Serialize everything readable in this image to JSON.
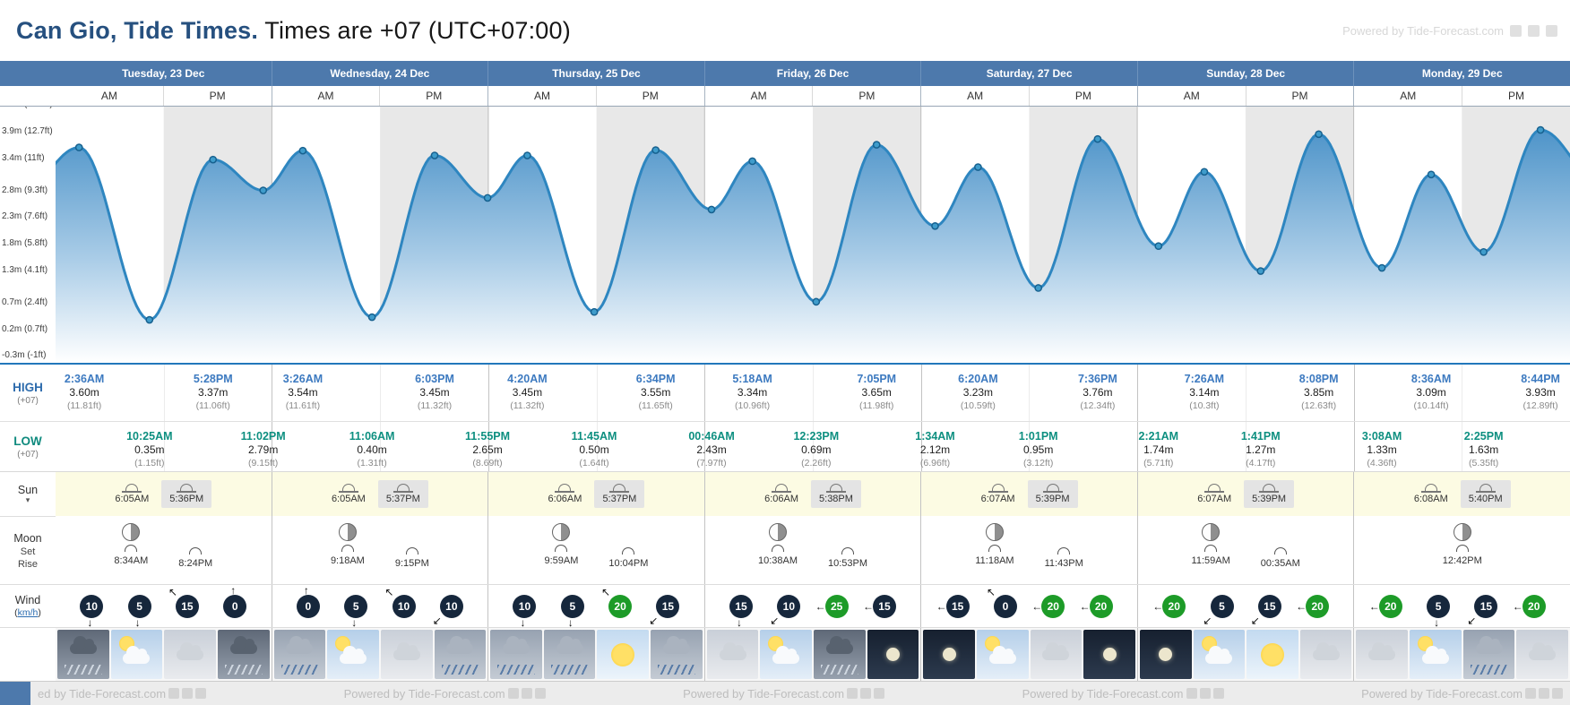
{
  "header": {
    "title_bold": "Can Gio, Tide Times.",
    "title_rest": " Times are +07 (UTC+07:00)",
    "powered_by": "Powered by Tide-Forecast.com"
  },
  "icons": {
    "caret_down": "▾"
  },
  "day_headers": [
    "Tuesday, 23 Dec",
    "Wednesday, 24 Dec",
    "Thursday, 25 Dec",
    "Friday, 26 Dec",
    "Saturday, 27 Dec",
    "Sunday, 28 Dec",
    "Monday, 29 Dec"
  ],
  "ampm_labels": [
    "AM",
    "PM"
  ],
  "row_labels": {
    "high": "HIGH",
    "high_tz": "(+07)",
    "low": "LOW",
    "low_tz": "(+07)",
    "sun": "Sun",
    "moon": "Moon",
    "set": "Set",
    "rise": "Rise",
    "wind": "Wind",
    "wind_unit": "km/h"
  },
  "chart_data": {
    "type": "area",
    "title": "Seven day tide height curve for Can Gio",
    "x_unit": "hours from Tuesday 00:00 (+07)",
    "y_unit": "m",
    "x_range": [
      0,
      168
    ],
    "y_range": [
      -0.46,
      4.37
    ],
    "grid": "pm-shaded-columns",
    "y_axis": [
      {
        "v": 4.4,
        "label": "4.4m (14.4ft)"
      },
      {
        "v": 3.9,
        "label": "3.9m (12.7ft)"
      },
      {
        "v": 3.4,
        "label": "3.4m (11ft)"
      },
      {
        "v": 2.8,
        "label": "2.8m (9.3ft)"
      },
      {
        "v": 2.3,
        "label": "2.3m (7.6ft)"
      },
      {
        "v": 1.8,
        "label": "1.8m (5.8ft)"
      },
      {
        "v": 1.3,
        "label": "1.3m (4.1ft)"
      },
      {
        "v": 0.7,
        "label": "0.7m (2.4ft)"
      },
      {
        "v": 0.2,
        "label": "0.2m (0.7ft)"
      },
      {
        "v": -0.3,
        "label": "-0.3m (-1ft)"
      }
    ],
    "points": [
      {
        "t": -3.6,
        "h": 2.8,
        "edge": true
      },
      {
        "t": 2.6,
        "h": 3.6
      },
      {
        "t": 10.42,
        "h": 0.35
      },
      {
        "t": 17.47,
        "h": 3.37
      },
      {
        "t": 23.03,
        "h": 2.79
      },
      {
        "t": 27.43,
        "h": 3.54
      },
      {
        "t": 35.1,
        "h": 0.4
      },
      {
        "t": 42.05,
        "h": 3.45
      },
      {
        "t": 47.92,
        "h": 2.65
      },
      {
        "t": 52.33,
        "h": 3.45
      },
      {
        "t": 59.75,
        "h": 0.5
      },
      {
        "t": 66.57,
        "h": 3.55
      },
      {
        "t": 72.77,
        "h": 2.43
      },
      {
        "t": 77.3,
        "h": 3.34
      },
      {
        "t": 84.38,
        "h": 0.69
      },
      {
        "t": 91.08,
        "h": 3.65
      },
      {
        "t": 97.57,
        "h": 2.12
      },
      {
        "t": 102.33,
        "h": 3.23
      },
      {
        "t": 109.02,
        "h": 0.95
      },
      {
        "t": 115.6,
        "h": 3.76
      },
      {
        "t": 122.35,
        "h": 1.74
      },
      {
        "t": 127.43,
        "h": 3.14
      },
      {
        "t": 133.68,
        "h": 1.27
      },
      {
        "t": 140.13,
        "h": 3.85
      },
      {
        "t": 147.13,
        "h": 1.33
      },
      {
        "t": 152.6,
        "h": 3.09
      },
      {
        "t": 158.42,
        "h": 1.63
      },
      {
        "t": 164.73,
        "h": 3.93
      },
      {
        "t": 171.5,
        "h": 2.9,
        "edge": true
      }
    ]
  },
  "high_tides": [
    {
      "t": 2.6,
      "time": "2:36AM",
      "height_m": "3.60m",
      "height_ft": "(11.81ft)"
    },
    {
      "t": 17.47,
      "time": "5:28PM",
      "height_m": "3.37m",
      "height_ft": "(11.06ft)"
    },
    {
      "t": 27.43,
      "time": "3:26AM",
      "height_m": "3.54m",
      "height_ft": "(11.61ft)"
    },
    {
      "t": 42.05,
      "time": "6:03PM",
      "height_m": "3.45m",
      "height_ft": "(11.32ft)"
    },
    {
      "t": 52.33,
      "time": "4:20AM",
      "height_m": "3.45m",
      "height_ft": "(11.32ft)"
    },
    {
      "t": 66.57,
      "time": "6:34PM",
      "height_m": "3.55m",
      "height_ft": "(11.65ft)"
    },
    {
      "t": 77.3,
      "time": "5:18AM",
      "height_m": "3.34m",
      "height_ft": "(10.96ft)"
    },
    {
      "t": 91.08,
      "time": "7:05PM",
      "height_m": "3.65m",
      "height_ft": "(11.98ft)"
    },
    {
      "t": 102.33,
      "time": "6:20AM",
      "height_m": "3.23m",
      "height_ft": "(10.59ft)"
    },
    {
      "t": 115.6,
      "time": "7:36PM",
      "height_m": "3.76m",
      "height_ft": "(12.34ft)"
    },
    {
      "t": 127.43,
      "time": "7:26AM",
      "height_m": "3.14m",
      "height_ft": "(10.3ft)"
    },
    {
      "t": 140.13,
      "time": "8:08PM",
      "height_m": "3.85m",
      "height_ft": "(12.63ft)"
    },
    {
      "t": 152.6,
      "time": "8:36AM",
      "height_m": "3.09m",
      "height_ft": "(10.14ft)"
    },
    {
      "t": 164.73,
      "time": "8:44PM",
      "height_m": "3.93m",
      "height_ft": "(12.89ft)"
    }
  ],
  "low_tides": [
    {
      "t": 10.42,
      "time": "10:25AM",
      "height_m": "0.35m",
      "height_ft": "(1.15ft)"
    },
    {
      "t": 23.03,
      "time": "11:02PM",
      "height_m": "2.79m",
      "height_ft": "(9.15ft)"
    },
    {
      "t": 35.1,
      "time": "11:06AM",
      "height_m": "0.40m",
      "height_ft": "(1.31ft)"
    },
    {
      "t": 47.92,
      "time": "11:55PM",
      "height_m": "2.65m",
      "height_ft": "(8.69ft)"
    },
    {
      "t": 59.75,
      "time": "11:45AM",
      "height_m": "0.50m",
      "height_ft": "(1.64ft)"
    },
    {
      "t": 72.77,
      "time": "00:46AM",
      "height_m": "2.43m",
      "height_ft": "(7.97ft)"
    },
    {
      "t": 84.38,
      "time": "12:23PM",
      "height_m": "0.69m",
      "height_ft": "(2.26ft)"
    },
    {
      "t": 97.57,
      "time": "1:34AM",
      "height_m": "2.12m",
      "height_ft": "(6.96ft)"
    },
    {
      "t": 109.02,
      "time": "1:01PM",
      "height_m": "0.95m",
      "height_ft": "(3.12ft)"
    },
    {
      "t": 122.35,
      "time": "2:21AM",
      "height_m": "1.74m",
      "height_ft": "(5.71ft)"
    },
    {
      "t": 133.68,
      "time": "1:41PM",
      "height_m": "1.27m",
      "height_ft": "(4.17ft)"
    },
    {
      "t": 147.13,
      "time": "3:08AM",
      "height_m": "1.33m",
      "height_ft": "(4.36ft)"
    },
    {
      "t": 158.42,
      "time": "2:25PM",
      "height_m": "1.63m",
      "height_ft": "(5.35ft)"
    }
  ],
  "sun": [
    {
      "rise": "6:05AM",
      "set": "5:36PM"
    },
    {
      "rise": "6:05AM",
      "set": "5:37PM"
    },
    {
      "rise": "6:06AM",
      "set": "5:37PM"
    },
    {
      "rise": "6:06AM",
      "set": "5:38PM"
    },
    {
      "rise": "6:07AM",
      "set": "5:39PM"
    },
    {
      "rise": "6:07AM",
      "set": "5:39PM"
    },
    {
      "rise": "6:08AM",
      "set": "5:40PM"
    }
  ],
  "moon": [
    {
      "set": "8:34AM",
      "rise": "8:24PM",
      "phase": "waning-gibbous"
    },
    {
      "set": "9:18AM",
      "rise": "9:15PM",
      "phase": "waning-gibbous"
    },
    {
      "set": "9:59AM",
      "rise": "10:04PM",
      "phase": "waning-gibbous"
    },
    {
      "set": "10:38AM",
      "rise": "10:53PM",
      "phase": "last-quarter"
    },
    {
      "set": "11:18AM",
      "rise": "11:43PM",
      "phase": "last-quarter"
    },
    {
      "set": "11:59AM",
      "rise": "00:35AM",
      "phase": "waning-crescent"
    },
    {
      "set": "12:42PM",
      "rise": "",
      "phase": "waning-crescent"
    }
  ],
  "wind": [
    {
      "speed": 10,
      "arrow": "↓"
    },
    {
      "speed": 5,
      "arrow": "↓"
    },
    {
      "speed": 15,
      "arrow": "↖"
    },
    {
      "speed": 0,
      "arrow": "↑"
    },
    {
      "speed": 0,
      "arrow": "↑"
    },
    {
      "speed": 5,
      "arrow": "↓"
    },
    {
      "speed": 10,
      "arrow": "↖"
    },
    {
      "speed": 10,
      "arrow": "↙"
    },
    {
      "speed": 10,
      "arrow": "↓"
    },
    {
      "speed": 5,
      "arrow": "↓"
    },
    {
      "speed": 20,
      "arrow": "↖"
    },
    {
      "speed": 15,
      "arrow": "↙"
    },
    {
      "speed": 15,
      "arrow": "↓"
    },
    {
      "speed": 10,
      "arrow": "↙"
    },
    {
      "speed": 25,
      "arrow": "←"
    },
    {
      "speed": 15,
      "arrow": "←"
    },
    {
      "speed": 15,
      "arrow": "←"
    },
    {
      "speed": 0,
      "arrow": "↖"
    },
    {
      "speed": 20,
      "arrow": "←"
    },
    {
      "speed": 20,
      "arrow": "←"
    },
    {
      "speed": 20,
      "arrow": "←"
    },
    {
      "speed": 5,
      "arrow": "↙"
    },
    {
      "speed": 15,
      "arrow": "↙"
    },
    {
      "speed": 20,
      "arrow": "←"
    },
    {
      "speed": 20,
      "arrow": "←"
    },
    {
      "speed": 5,
      "arrow": "↓"
    },
    {
      "speed": 15,
      "arrow": "↙"
    },
    {
      "speed": 20,
      "arrow": "←"
    }
  ],
  "weather": [
    "storm",
    "sun-cloud",
    "cloud",
    "storm",
    "rain",
    "sun-cloud",
    "cloud",
    "rain",
    "rain",
    "rain",
    "sun",
    "rain",
    "cloud",
    "sun-cloud",
    "storm",
    "night",
    "night",
    "sun-cloud",
    "cloud",
    "night",
    "night",
    "sun-cloud",
    "sun",
    "cloud",
    "cloud",
    "sun-cloud",
    "rain",
    "cloud"
  ],
  "footer": {
    "items": [
      "ed by Tide-Forecast.com",
      "Powered by Tide-Forecast.com",
      "Powered by Tide-Forecast.com",
      "Powered by Tide-Forecast.com",
      "Powered by Tide-Forecast.com"
    ]
  },
  "colors": {
    "day_header_bg": "#4d79ac",
    "title_blue": "#26507f",
    "high_time": "#3d7ac0",
    "low_time": "#0d8f80",
    "curve_stroke": "#2e86c0",
    "pm_stripe": "#e8e8e8",
    "wind_dark": "#16273c",
    "wind_green": "#1d9b28",
    "sun_row_bg": "#fcfbe3",
    "chart_baseline": "#2277bb"
  }
}
